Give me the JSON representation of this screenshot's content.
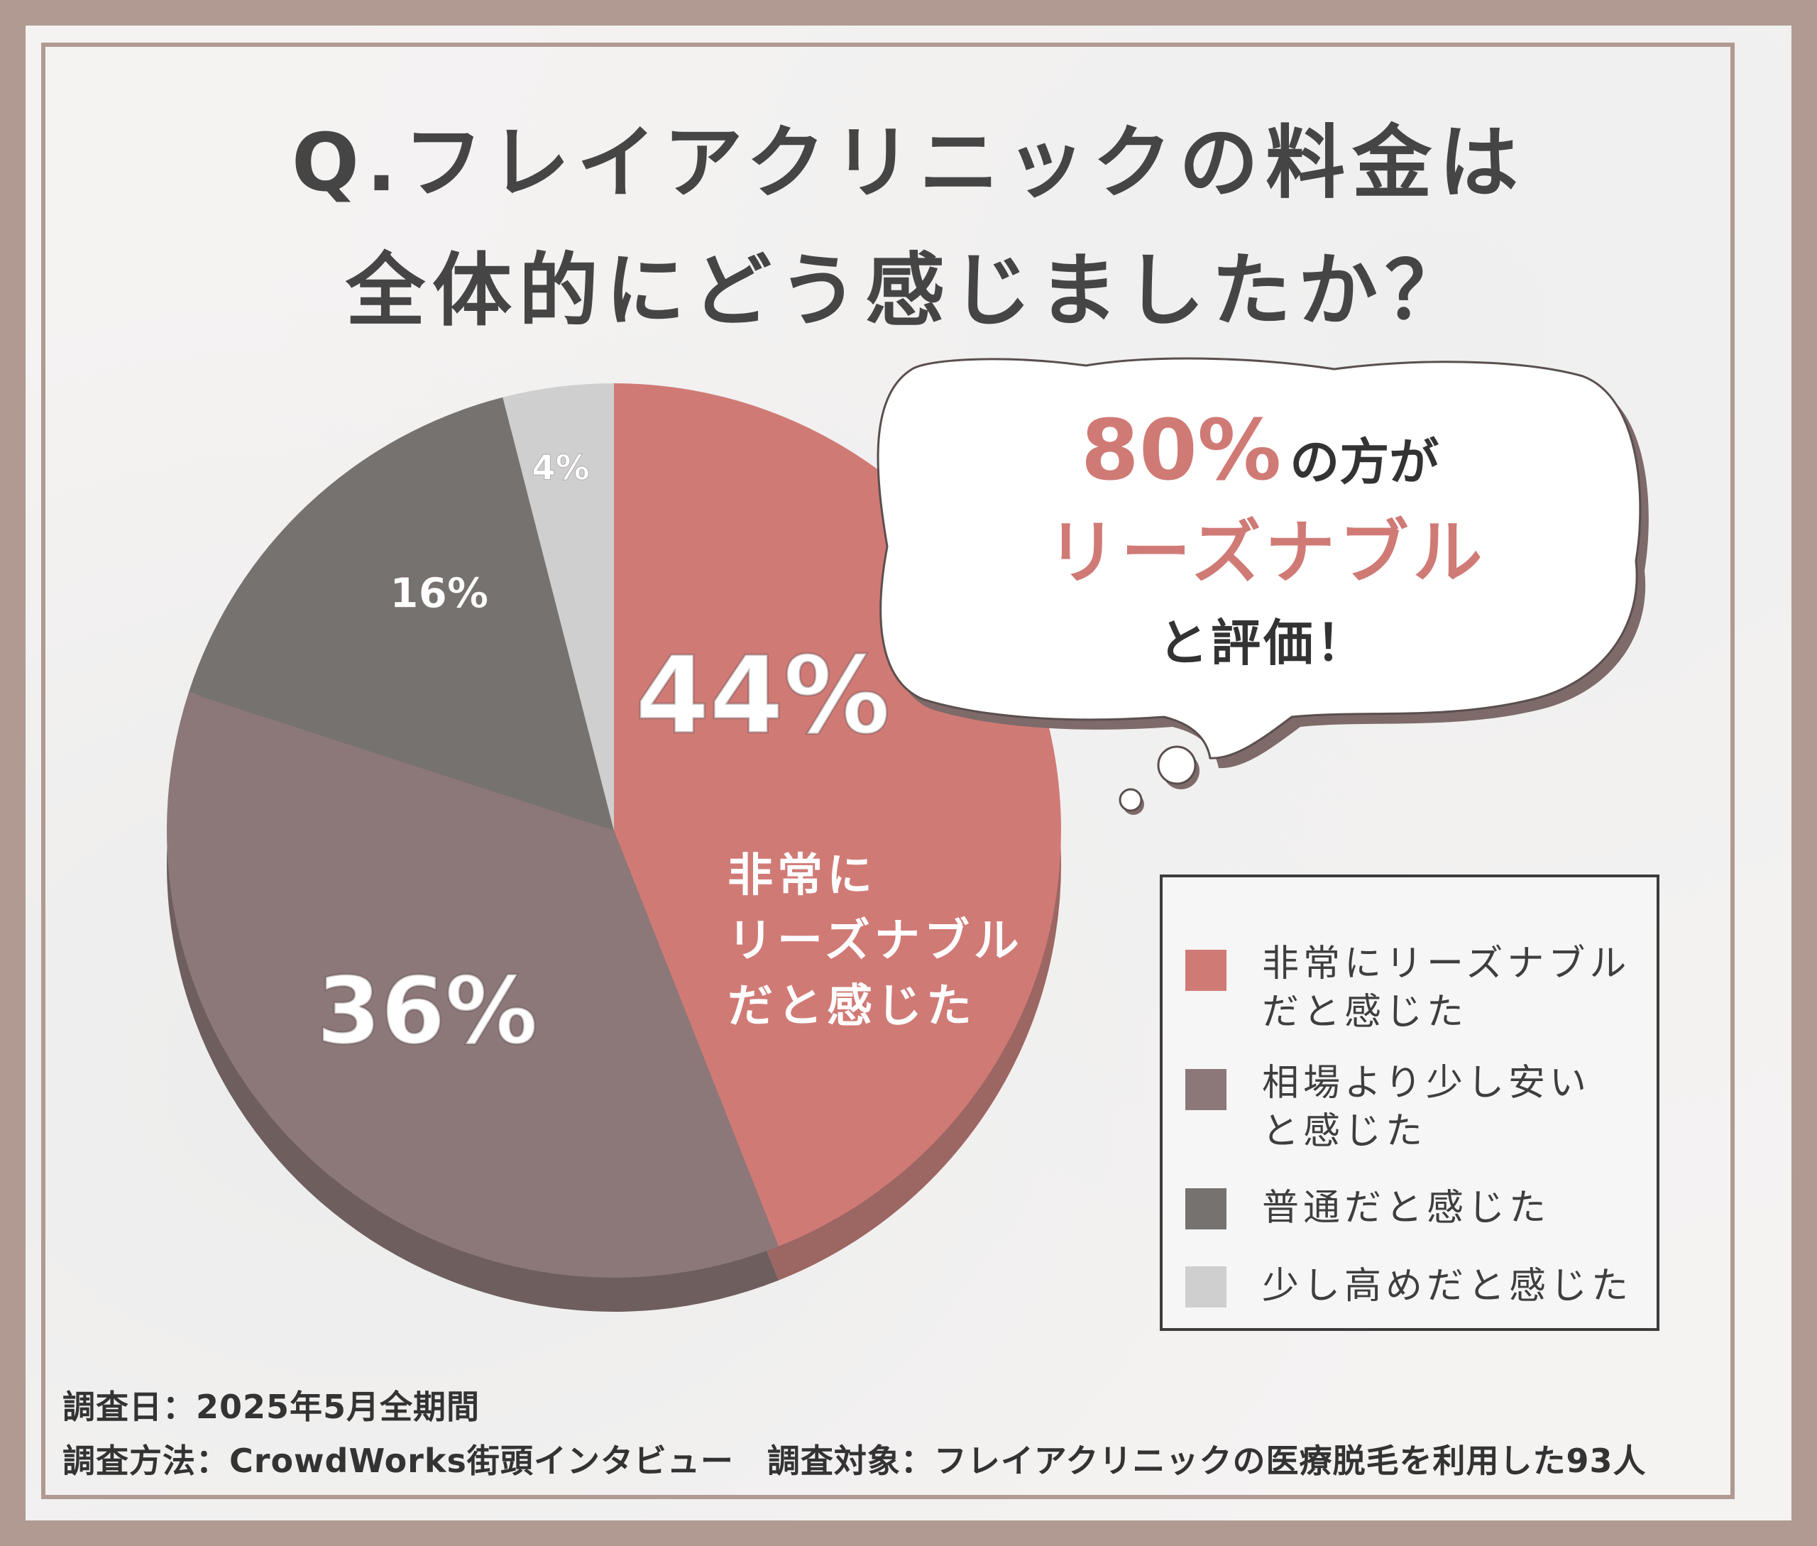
{
  "title": {
    "line1": "Q.フレイアクリニックの料金は",
    "line2": "全体的にどう感じましたか？"
  },
  "colors": {
    "very_reasonable": "#d07a76",
    "reasonable": "#8c7878",
    "normal": "#767270",
    "expensive": "#cfcfcf",
    "accent": "#d07a76",
    "frame": "#b09a92"
  },
  "bubble": {
    "percent": "80%",
    "line1_suffix": "の方が",
    "line2": "リーズナブル",
    "line3": "と評価！"
  },
  "chart_data": {
    "type": "pie",
    "slices": [
      {
        "label": "非常にリーズナブルだと感じた",
        "value": 44,
        "display": "44%"
      },
      {
        "label": "相場より少し安いと感じた",
        "value": 36,
        "display": "36%"
      },
      {
        "label": "普通だと感じた",
        "value": 16,
        "display": "16%"
      },
      {
        "label": "少し高めだと感じた",
        "value": 4,
        "display": "4%"
      }
    ],
    "inline_label": "非常に\nリーズナブル\nだと感じた"
  },
  "legend": [
    {
      "label": "非常にリーズナブル\nだと感じた",
      "color": "#d07a76"
    },
    {
      "label": "相場より少し安い\nと感じた",
      "color": "#8c7878"
    },
    {
      "label": "普通だと感じた",
      "color": "#767270"
    },
    {
      "label": "少し高めだと感じた",
      "color": "#cfcfcf"
    }
  ],
  "footer": {
    "line1": "調査日：2025年5月全期間",
    "line2": "調査方法：CrowdWorks街頭インタビュー　調査対象：フレイアクリニックの医療脱毛を利用した93人"
  }
}
